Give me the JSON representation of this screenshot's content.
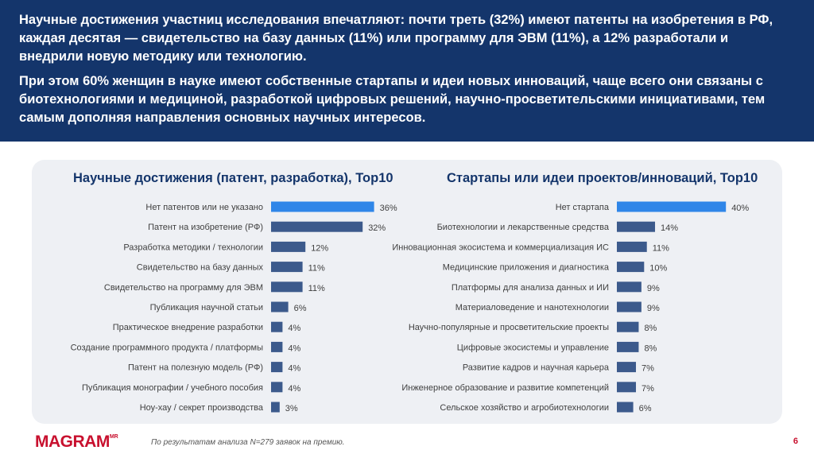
{
  "header": {
    "paragraph1": "Научные достижения участниц исследования впечатляют: почти треть (32%) имеют патенты на изобретения в РФ, каждая десятая — свидетельство на базу данных (11%) или программу для ЭВМ (11%), а 12% разработали и внедрили новую методику или технологию.",
    "paragraph2": "При этом 60% женщин в науке имеют собственные стартапы и идеи новых инноваций, чаще всего они связаны с биотехнологиями и медициной, разработкой цифровых решений, научно-просветительскими инициативами, тем самым дополняя направления основных научных интересов."
  },
  "chart_data": [
    {
      "type": "bar",
      "orientation": "horizontal",
      "title": "Научные достижения (патент, разработка), Top10",
      "categories": [
        "Нет патентов или не указано",
        "Патент на изобретение (РФ)",
        "Разработка методики / технологии",
        "Свидетельство на базу данных",
        "Свидетельство на программу для ЭВМ",
        "Публикация научной статьи",
        "Практическое внедрение разработки",
        "Создание программного продукта / платформы",
        "Патент на полезную модель (РФ)",
        "Публикация монографии / учебного пособия",
        "Ноу-хау / секрет производства"
      ],
      "values": [
        36,
        32,
        12,
        11,
        11,
        6,
        4,
        4,
        4,
        4,
        3
      ],
      "value_labels": [
        "36%",
        "32%",
        "12%",
        "11%",
        "11%",
        "6%",
        "4%",
        "4%",
        "4%",
        "4%",
        "3%"
      ],
      "xlim": [
        0,
        40
      ],
      "highlight_index": 0,
      "highlight_color": "#2f86e8",
      "bar_color": "#3c5a8c"
    },
    {
      "type": "bar",
      "orientation": "horizontal",
      "title": "Стартапы или идеи проектов/инноваций, Top10",
      "categories": [
        "Нет стартапа",
        "Биотехнологии и лекарственные средства",
        "Инновационная экосистема и коммерциализация ИС",
        "Медицинские приложения и диагностика",
        "Платформы для анализа данных и ИИ",
        "Материаловедение и нанотехнологии",
        "Научно-популярные и просветительские проекты",
        "Цифровые экосистемы и управление",
        "Развитие кадров и научная карьера",
        "Инженерное образование и развитие компетенций",
        "Сельское хозяйство и агробиотехнологии"
      ],
      "values": [
        40,
        14,
        11,
        10,
        9,
        9,
        8,
        8,
        7,
        7,
        6
      ],
      "value_labels": [
        "40%",
        "14%",
        "11%",
        "10%",
        "9%",
        "9%",
        "8%",
        "8%",
        "7%",
        "7%",
        "6%"
      ],
      "xlim": [
        0,
        40
      ],
      "highlight_index": 0,
      "highlight_color": "#2f86e8",
      "bar_color": "#3c5a8c"
    }
  ],
  "footer": {
    "logo_text": "MAGRAM",
    "logo_sup": "MR",
    "footnote": "По результатам анализа N=279 заявок на премию.",
    "page_number": "6"
  },
  "colors": {
    "header_bg": "#14356b",
    "panel_bg": "#eef0f4",
    "title_color": "#14356b",
    "brand_red": "#c8102e"
  }
}
